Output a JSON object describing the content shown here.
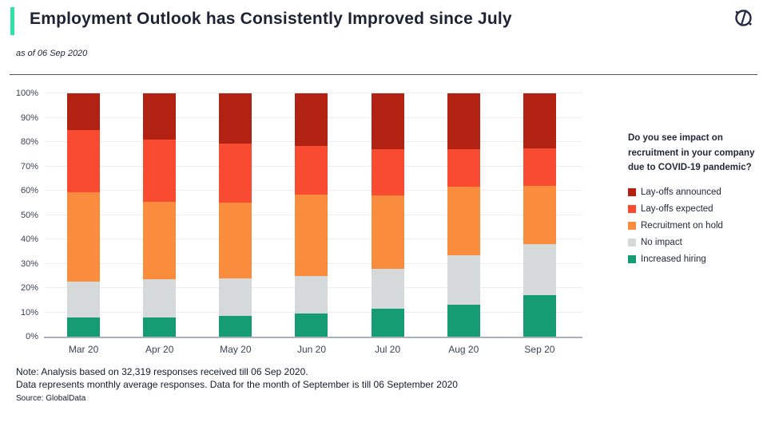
{
  "header": {
    "title": "Employment Outlook has Consistently Improved since July",
    "subtitle": "as of 06 Sep 2020",
    "logo_icon": "globaldata-compass-logo"
  },
  "colors": {
    "accent": "#2EE3A4",
    "title_text": "#1E2235",
    "gridline": "#ECEDEF",
    "axis_line": "#A9B2BC",
    "tick_text": "#3B4252"
  },
  "chart_data": {
    "type": "bar",
    "stacked": true,
    "title": "Employment Outlook has Consistently Improved since July",
    "categories": [
      "Mar 20",
      "Apr 20",
      "May 20",
      "Jun 20",
      "Jul 20",
      "Aug 20",
      "Sep 20"
    ],
    "series": [
      {
        "name": "Increased hiring",
        "color": "#169C72",
        "values": [
          8,
          8,
          8.5,
          9.5,
          11.5,
          13,
          17
        ]
      },
      {
        "name": "No impact",
        "color": "#D5D9DA",
        "values": [
          14.5,
          15.5,
          15.5,
          15.5,
          16.5,
          20.5,
          21
        ]
      },
      {
        "name": "Recruitment on hold",
        "color": "#F98D3D",
        "values": [
          37,
          32,
          31,
          33.5,
          30,
          28,
          24
        ]
      },
      {
        "name": "Lay-offs expected",
        "color": "#F84B31",
        "values": [
          25.5,
          25.5,
          24.5,
          20,
          19,
          15.5,
          15.5
        ]
      },
      {
        "name": "Lay-offs announced",
        "color": "#B22213",
        "values": [
          15,
          19,
          20.5,
          21.5,
          23,
          23,
          22.5
        ]
      }
    ],
    "xlabel": "",
    "ylabel": "",
    "ylim": [
      0,
      100
    ],
    "ytick_step": 10,
    "ytick_format": "percent",
    "grid": true,
    "legend_position": "right"
  },
  "legend": {
    "question": "Do you see impact on recruitment in your company due to COVID-19 pandemic?",
    "items": [
      {
        "label": "Lay-offs announced",
        "color": "#B22213"
      },
      {
        "label": "Lay-offs expected",
        "color": "#F84B31"
      },
      {
        "label": "Recruitment on hold",
        "color": "#F98D3D"
      },
      {
        "label": "No impact",
        "color": "#D5D9DA"
      },
      {
        "label": "Increased hiring",
        "color": "#169C72"
      }
    ]
  },
  "footer": {
    "notes": [
      "Note: Analysis based on 32,319 responses received till 06 Sep 2020.",
      "Data represents monthly average responses. Data for the month of September is till 06 September 2020"
    ],
    "source": "Source: GlobalData"
  }
}
